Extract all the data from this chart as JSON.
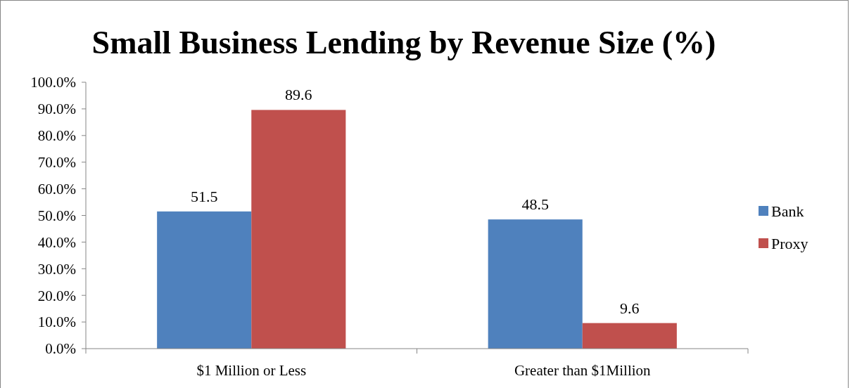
{
  "chart_data": {
    "type": "bar",
    "title": "Small Business Lending by Revenue Size (%)",
    "categories": [
      "$1 Million or Less",
      "Greater than $1Million"
    ],
    "series": [
      {
        "name": "Bank",
        "color": "#4f81bd",
        "values": [
          51.5,
          48.5
        ]
      },
      {
        "name": "Proxy",
        "color": "#c0504d",
        "values": [
          89.6,
          9.6
        ]
      }
    ],
    "ylim": [
      0,
      100
    ],
    "yticks": [
      {
        "value": 0,
        "label": "0.0%"
      },
      {
        "value": 10,
        "label": "10.0%"
      },
      {
        "value": 20,
        "label": "20.0%"
      },
      {
        "value": 30,
        "label": "30.0%"
      },
      {
        "value": 40,
        "label": "40.0%"
      },
      {
        "value": 50,
        "label": "50.0%"
      },
      {
        "value": 60,
        "label": "60.0%"
      },
      {
        "value": 70,
        "label": "70.0%"
      },
      {
        "value": 80,
        "label": "80.0%"
      },
      {
        "value": 90,
        "label": "90.0%"
      },
      {
        "value": 100,
        "label": "100.0%"
      }
    ],
    "data_labels": true,
    "legend": "right",
    "grid": false
  }
}
